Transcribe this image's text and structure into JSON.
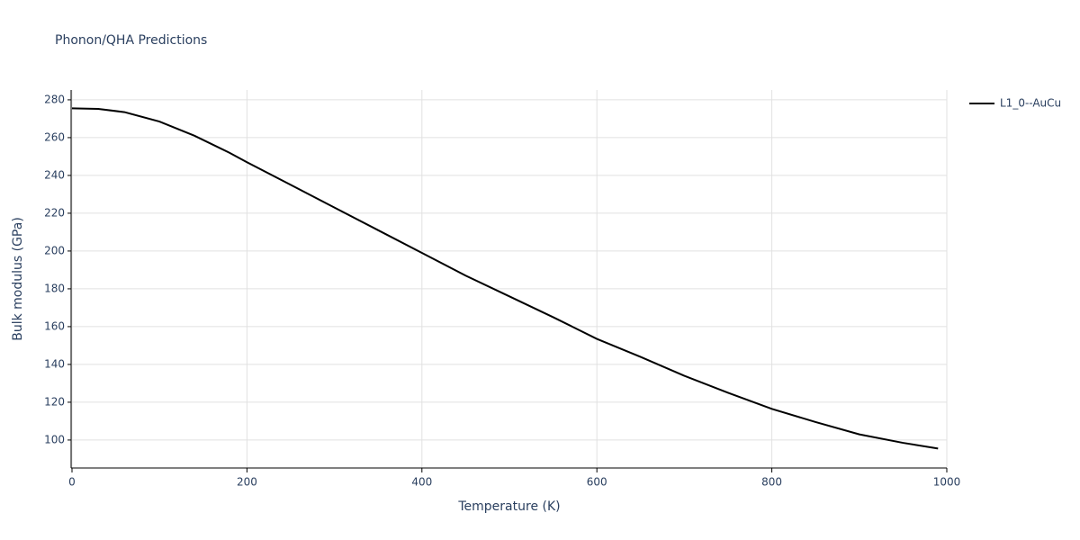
{
  "chart_data": {
    "type": "line",
    "title": "Phonon/QHA Predictions",
    "x_label": "Temperature (K)",
    "y_label": "Bulk modulus (GPa)",
    "x": [
      0,
      30,
      60,
      100,
      140,
      180,
      200,
      250,
      300,
      350,
      400,
      450,
      500,
      550,
      600,
      650,
      700,
      750,
      800,
      850,
      900,
      950,
      990
    ],
    "series": [
      {
        "name": "L1_0--AuCu",
        "color": "#000000",
        "values": [
          275.5,
          275.2,
          273.5,
          268.5,
          261,
          252,
          247,
          235,
          223,
          211,
          199,
          187,
          176,
          165,
          153.5,
          144,
          134,
          125,
          116.5,
          109.5,
          103,
          98.5,
          95.5
        ]
      }
    ],
    "xlim": [
      0,
      1000
    ],
    "xticks": [
      0,
      200,
      400,
      600,
      800,
      1000
    ],
    "ylim": [
      85.2,
      285.2
    ],
    "yticks": [
      100,
      120,
      140,
      160,
      180,
      200,
      220,
      240,
      260,
      280
    ],
    "grid": true
  }
}
